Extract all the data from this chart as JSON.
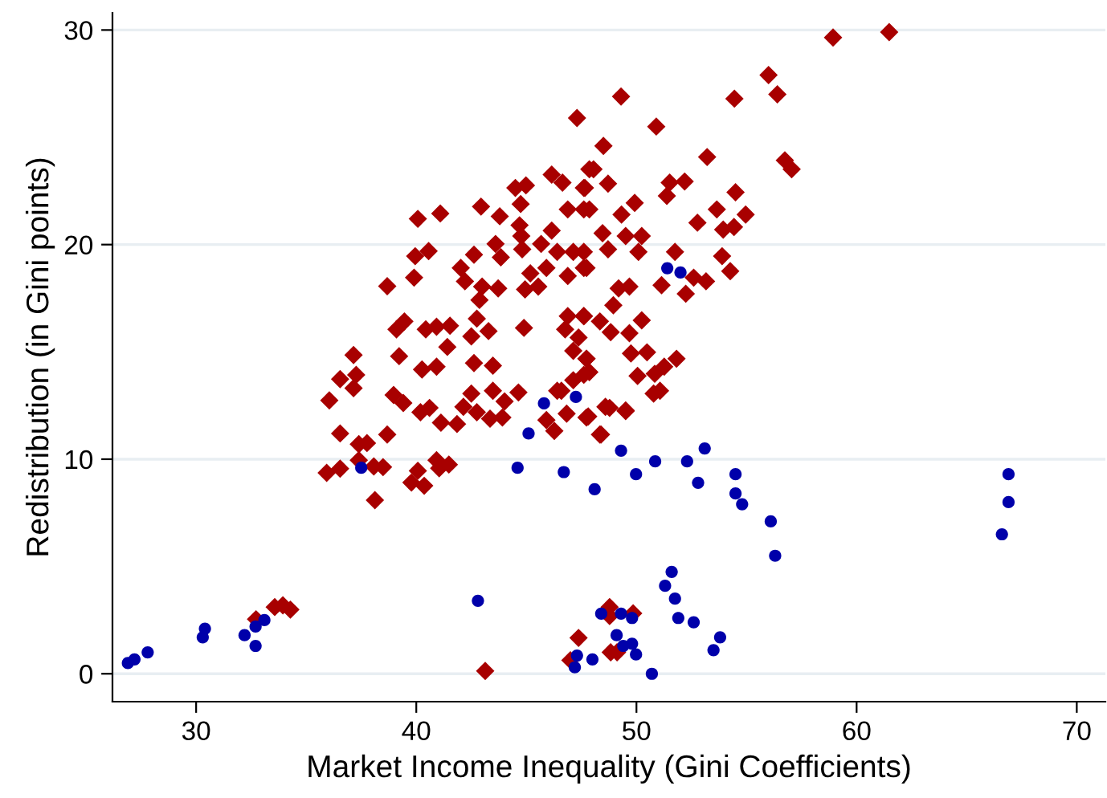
{
  "chart_data": {
    "type": "scatter",
    "xlabel": "Market Income Inequality (Gini Coefficients)",
    "ylabel": "Redistribution (in Gini points)",
    "xlim": [
      26.2,
      71.3
    ],
    "ylim": [
      -1.3,
      30.8
    ],
    "xticks": [
      30,
      40,
      50,
      60,
      70
    ],
    "yticks": [
      0,
      10,
      20,
      30
    ],
    "grid": "y",
    "series": [
      {
        "color": "#a80000",
        "marker": "diamond",
        "x": [
          40.07,
          41.09,
          42.94,
          43.79,
          44.5,
          44.98,
          44.74,
          46.15,
          46.64,
          47.61,
          47.86,
          46.88,
          47.61,
          44.69,
          44.77,
          44.81,
          43.6,
          43.84,
          45.67,
          46.15,
          46.4,
          45.91,
          47.13,
          47.61,
          46.88,
          45.18,
          39.95,
          40.56,
          42.62,
          42.02,
          42.21,
          42.99,
          42.87,
          43.72,
          44.94,
          45.54,
          39.9,
          38.68,
          39.46,
          39.1,
          40.43,
          40.92,
          41.53,
          41.41,
          42.5,
          43.28,
          42.75,
          44.89,
          46.88,
          47.61,
          46.76,
          47.37,
          47.13,
          47.73,
          47.86,
          47.13,
          46.4,
          39.22,
          40.26,
          40.92,
          42.62,
          43.48,
          37.15,
          36.54,
          37.27,
          37.15,
          36.05,
          38.97,
          39.41,
          40.19,
          40.6,
          41.12,
          41.85,
          42.14,
          42.5,
          42.75,
          43.35,
          43.91,
          43.48,
          44.01,
          44.64,
          45.91,
          46.27,
          46.83,
          47.73,
          36.54,
          37.39,
          37.76,
          38.68,
          35.93,
          36.54,
          38.07,
          38.49,
          37.39,
          40.07,
          39.78,
          40.36,
          40.92,
          41.04,
          41.48,
          38.12,
          46.59,
          48.05,
          48.71,
          47.66,
          47.86,
          49.32,
          49.92,
          48.46,
          49.51,
          50.24,
          50.09,
          47.61,
          47.73,
          48.71,
          53.21,
          56.74,
          57.05,
          51.51,
          52.19,
          51.38,
          54.5,
          53.65,
          54.96,
          52.77,
          53.94,
          54.43,
          51.75,
          53.89,
          54.26,
          51.14,
          52.24,
          52.6,
          53.16,
          49.19,
          49.68,
          47.61,
          48.34,
          48.95,
          48.83,
          49.68,
          50.24,
          47.73,
          47.61,
          49.75,
          50.48,
          50.05,
          50.83,
          51.26,
          51.82,
          50.78,
          51.07,
          47.81,
          48.59,
          49.51,
          48.34,
          33.57,
          33.94,
          34.28,
          32.72,
          43.13,
          47.37,
          47.0,
          48.78,
          48.78,
          49.85,
          48.83,
          49.12,
          48.39,
          49.51,
          48.78,
          58.93,
          61.48,
          54.45,
          56.4,
          56.0,
          47.3,
          49.3,
          50.9,
          48.5
        ],
        "values": [
          21.2,
          21.45,
          21.77,
          21.32,
          22.64,
          22.76,
          21.89,
          23.26,
          22.89,
          22.64,
          23.51,
          21.64,
          21.64,
          20.9,
          20.4,
          19.78,
          20.03,
          19.41,
          20.03,
          20.65,
          19.66,
          18.91,
          19.66,
          18.91,
          18.54,
          18.66,
          19.46,
          19.7,
          19.53,
          18.91,
          18.29,
          18.04,
          17.42,
          17.96,
          17.91,
          18.04,
          18.46,
          18.06,
          16.42,
          16.05,
          16.05,
          16.17,
          16.22,
          15.23,
          15.72,
          15.97,
          16.55,
          16.12,
          16.67,
          16.67,
          16.05,
          15.67,
          15.05,
          14.68,
          14.06,
          13.68,
          13.19,
          14.8,
          14.18,
          14.31,
          14.48,
          14.36,
          14.85,
          13.73,
          13.93,
          13.31,
          12.74,
          12.99,
          12.62,
          12.19,
          12.39,
          11.7,
          11.64,
          12.44,
          13.06,
          12.19,
          11.89,
          11.94,
          13.19,
          12.69,
          13.11,
          11.82,
          11.32,
          12.12,
          11.94,
          11.2,
          10.7,
          10.75,
          11.15,
          9.36,
          9.56,
          9.66,
          9.63,
          9.95,
          9.46,
          8.91,
          8.76,
          9.95,
          9.58,
          9.75,
          8.09,
          13.19,
          23.51,
          22.84,
          22.64,
          21.64,
          21.4,
          21.94,
          20.53,
          20.4,
          20.4,
          19.66,
          19.66,
          18.91,
          19.78,
          24.08,
          23.93,
          23.51,
          22.89,
          22.94,
          22.27,
          22.44,
          21.64,
          21.4,
          21.02,
          20.7,
          20.82,
          19.66,
          19.46,
          18.76,
          18.11,
          17.71,
          18.46,
          18.29,
          17.96,
          18.04,
          16.67,
          16.42,
          17.17,
          15.92,
          15.87,
          16.47,
          14.68,
          13.93,
          14.93,
          14.98,
          13.88,
          13.98,
          14.31,
          14.68,
          13.06,
          13.19,
          11.99,
          12.44,
          12.27,
          11.15,
          3.11,
          3.19,
          2.99,
          2.54,
          0.13,
          1.67,
          0.63,
          3.11,
          2.69,
          2.82,
          1.0,
          1.0,
          11.15,
          12.24,
          12.39,
          29.65,
          29.9,
          26.8,
          27.0,
          27.9,
          25.9,
          26.9,
          25.5,
          24.6
        ]
      },
      {
        "color": "#0000aa",
        "marker": "circle",
        "x": [
          26.9,
          27.2,
          27.8,
          30.4,
          30.3,
          32.2,
          32.7,
          33.1,
          32.7,
          37.5,
          42.8,
          44.6,
          45.1,
          46.7,
          48.1,
          45.8,
          47.25,
          48.4,
          47.3,
          47.2,
          48.0,
          49.3,
          49.98,
          50.85,
          52.3,
          53.1,
          52.8,
          54.5,
          54.5,
          54.8,
          56.1,
          56.3,
          66.9,
          66.9,
          66.6,
          51.6,
          51.3,
          51.75,
          51.9,
          52.6,
          53.8,
          53.5,
          50.7,
          49.3,
          49.8,
          49.1,
          49.4,
          49.8,
          49.98,
          51.4,
          52.0
        ],
        "values": [
          0.5,
          0.67,
          1.0,
          2.1,
          1.7,
          1.8,
          2.2,
          2.5,
          1.3,
          9.6,
          3.4,
          9.6,
          11.2,
          9.4,
          8.6,
          12.6,
          12.9,
          2.8,
          0.85,
          0.3,
          0.67,
          10.4,
          9.3,
          9.9,
          9.9,
          10.5,
          8.9,
          9.3,
          8.4,
          7.9,
          7.1,
          5.5,
          9.3,
          8.0,
          6.5,
          4.75,
          4.1,
          3.5,
          2.6,
          2.4,
          1.7,
          1.1,
          0.0,
          2.8,
          2.6,
          1.8,
          1.3,
          1.4,
          0.9,
          18.9,
          18.7
        ]
      }
    ]
  }
}
